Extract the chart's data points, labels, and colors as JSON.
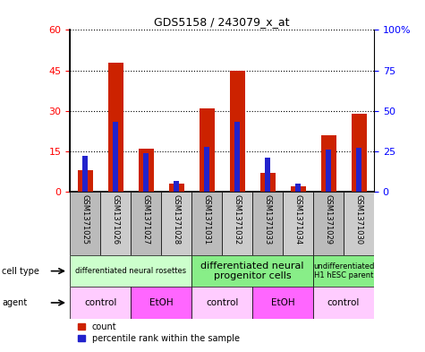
{
  "title": "GDS5158 / 243079_x_at",
  "samples": [
    "GSM1371025",
    "GSM1371026",
    "GSM1371027",
    "GSM1371028",
    "GSM1371031",
    "GSM1371032",
    "GSM1371033",
    "GSM1371034",
    "GSM1371029",
    "GSM1371030"
  ],
  "counts": [
    8,
    48,
    16,
    3,
    31,
    45,
    7,
    2,
    21,
    29
  ],
  "percentiles": [
    22,
    43,
    24,
    7,
    28,
    43,
    21,
    5,
    26,
    27
  ],
  "left_ylim": [
    0,
    60
  ],
  "right_ylim": [
    0,
    100
  ],
  "left_yticks": [
    0,
    15,
    30,
    45,
    60
  ],
  "right_yticks": [
    0,
    25,
    50,
    75,
    100
  ],
  "right_yticklabels": [
    "0",
    "25",
    "50",
    "75",
    "100%"
  ],
  "red_color": "#CC2200",
  "blue_color": "#2222CC",
  "cell_type_groups": [
    {
      "label": "differentiated neural rosettes",
      "start": 0,
      "end": 3,
      "color": "#CCFFCC",
      "fontsize": 6
    },
    {
      "label": "differentiated neural\nprogenitor cells",
      "start": 4,
      "end": 7,
      "color": "#88EE88",
      "fontsize": 8
    },
    {
      "label": "undifferentiated\nH1 hESC parent",
      "start": 8,
      "end": 9,
      "color": "#88EE88",
      "fontsize": 6
    }
  ],
  "agent_groups": [
    {
      "label": "control",
      "start": 0,
      "end": 1,
      "color": "#FFCCFF"
    },
    {
      "label": "EtOH",
      "start": 2,
      "end": 3,
      "color": "#FF66FF"
    },
    {
      "label": "control",
      "start": 4,
      "end": 5,
      "color": "#FFCCFF"
    },
    {
      "label": "EtOH",
      "start": 6,
      "end": 7,
      "color": "#FF66FF"
    },
    {
      "label": "control",
      "start": 8,
      "end": 9,
      "color": "#FFCCFF"
    }
  ],
  "legend_count_label": "count",
  "legend_percentile_label": "percentile rank within the sample"
}
